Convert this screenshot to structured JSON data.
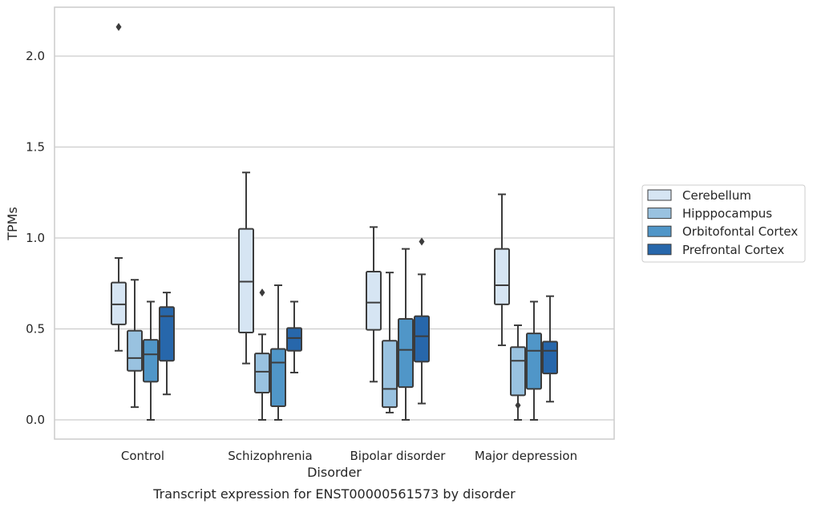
{
  "chart_data": {
    "type": "box",
    "caption": "Transcript expression for ENST00000561573 by disorder",
    "xlabel": "Disorder",
    "ylabel": "TPMs",
    "ylim": [
      -0.1,
      2.27
    ],
    "yticks": [
      "0.0",
      "0.5",
      "1.0",
      "1.5",
      "2.0"
    ],
    "grid": "horizontal",
    "legend_position": "right",
    "categories": [
      "Control",
      "Schizophrenia",
      "Bipolar disorder",
      "Major depression"
    ],
    "series": [
      {
        "name": "Cerebellum",
        "color": "#d6e5f3",
        "boxes": [
          {
            "low": 0.38,
            "q1": 0.525,
            "median": 0.635,
            "q3": 0.755,
            "high": 0.89,
            "outliers": [
              2.16
            ]
          },
          {
            "low": 0.31,
            "q1": 0.48,
            "median": 0.76,
            "q3": 1.05,
            "high": 1.36,
            "outliers": []
          },
          {
            "low": 0.21,
            "q1": 0.495,
            "median": 0.645,
            "q3": 0.815,
            "high": 1.06,
            "outliers": []
          },
          {
            "low": 0.41,
            "q1": 0.635,
            "median": 0.74,
            "q3": 0.94,
            "high": 1.24,
            "outliers": []
          }
        ]
      },
      {
        "name": "Hipppocampus",
        "color": "#99c2e0",
        "boxes": [
          {
            "low": 0.07,
            "q1": 0.27,
            "median": 0.34,
            "q3": 0.49,
            "high": 0.77,
            "outliers": []
          },
          {
            "low": 0.0,
            "q1": 0.15,
            "median": 0.265,
            "q3": 0.365,
            "high": 0.47,
            "outliers": [
              0.7
            ]
          },
          {
            "low": 0.04,
            "q1": 0.07,
            "median": 0.17,
            "q3": 0.435,
            "high": 0.81,
            "outliers": []
          },
          {
            "low": 0.0,
            "q1": 0.135,
            "median": 0.325,
            "q3": 0.4,
            "high": 0.52,
            "outliers": [
              0.08
            ]
          }
        ]
      },
      {
        "name": "Orbitofontal Cortex",
        "color": "#5096c8",
        "boxes": [
          {
            "low": 0.0,
            "q1": 0.21,
            "median": 0.36,
            "q3": 0.44,
            "high": 0.65,
            "outliers": []
          },
          {
            "low": 0.0,
            "q1": 0.075,
            "median": 0.315,
            "q3": 0.39,
            "high": 0.74,
            "outliers": []
          },
          {
            "low": 0.0,
            "q1": 0.18,
            "median": 0.385,
            "q3": 0.555,
            "high": 0.94,
            "outliers": []
          },
          {
            "low": 0.0,
            "q1": 0.17,
            "median": 0.38,
            "q3": 0.475,
            "high": 0.65,
            "outliers": []
          }
        ]
      },
      {
        "name": "Prefrontal Cortex",
        "color": "#2767ab",
        "boxes": [
          {
            "low": 0.14,
            "q1": 0.325,
            "median": 0.57,
            "q3": 0.62,
            "high": 0.7,
            "outliers": []
          },
          {
            "low": 0.26,
            "q1": 0.38,
            "median": 0.45,
            "q3": 0.505,
            "high": 0.65,
            "outliers": []
          },
          {
            "low": 0.09,
            "q1": 0.32,
            "median": 0.46,
            "q3": 0.57,
            "high": 0.8,
            "outliers": [
              0.98
            ]
          },
          {
            "low": 0.1,
            "q1": 0.255,
            "median": 0.38,
            "q3": 0.43,
            "high": 0.68,
            "outliers": []
          }
        ]
      }
    ]
  }
}
